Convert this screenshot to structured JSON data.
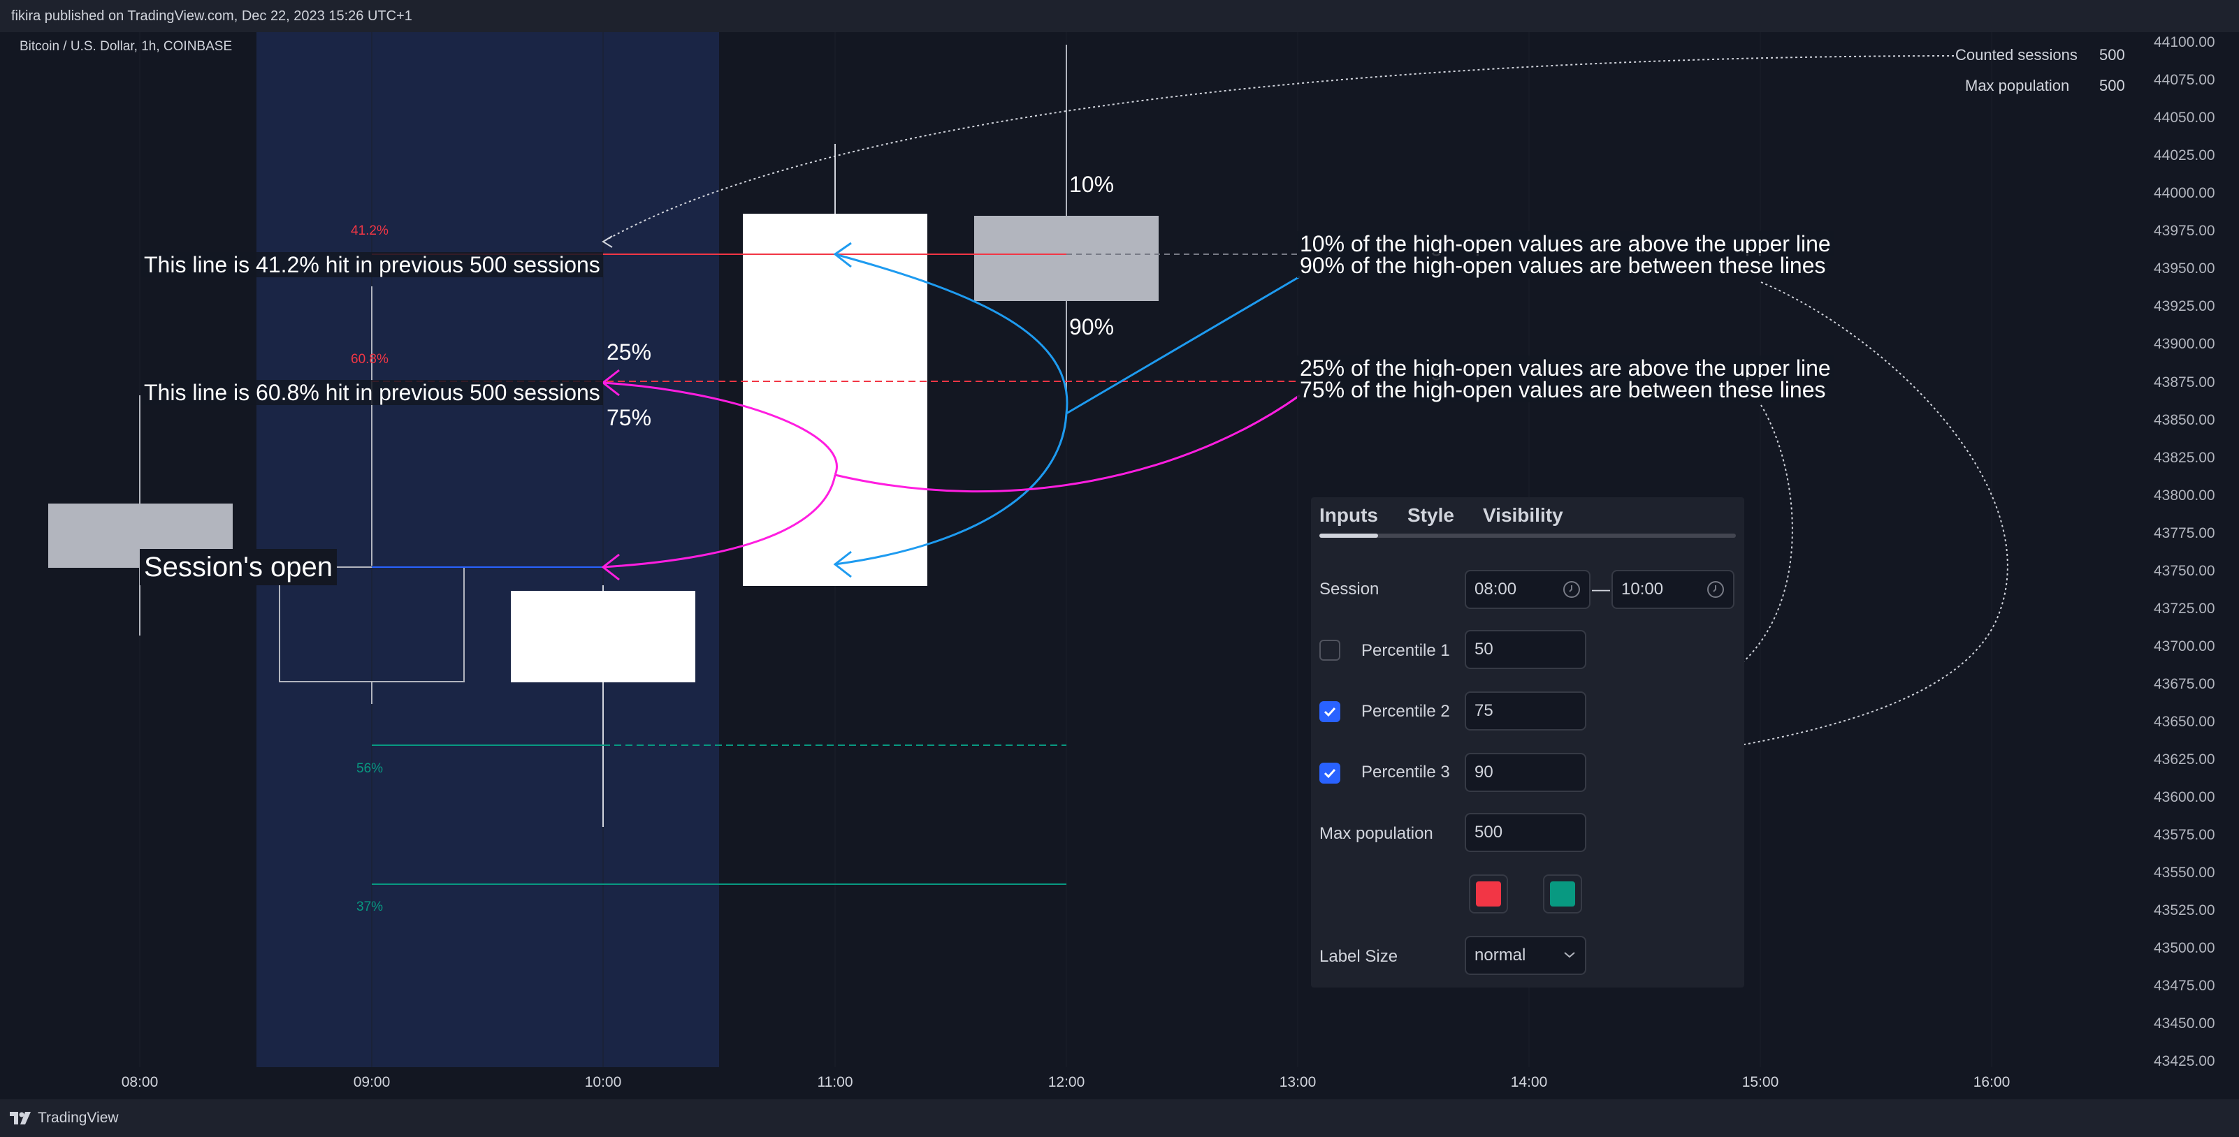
{
  "publisher_line": "fikira published on TradingView.com, Dec 22, 2023 15:26 UTC+1",
  "symbol": "Bitcoin / U.S. Dollar, 1h, COINBASE",
  "footer_brand": "TradingView",
  "info": {
    "counted_sessions_label": "Counted sessions",
    "counted_sessions_value": "500",
    "max_population_label": "Max population",
    "max_population_value": "500"
  },
  "y_axis": [
    "44100.00",
    "44075.00",
    "44050.00",
    "44025.00",
    "44000.00",
    "43975.00",
    "43950.00",
    "43925.00",
    "43900.00",
    "43875.00",
    "43850.00",
    "43825.00",
    "43800.00",
    "43775.00",
    "43750.00",
    "43725.00",
    "43700.00",
    "43675.00",
    "43650.00",
    "43625.00",
    "43600.00",
    "43575.00",
    "43550.00",
    "43525.00",
    "43500.00",
    "43475.00",
    "43450.00",
    "43425.00"
  ],
  "x_axis": [
    "08:00",
    "09:00",
    "10:00",
    "11:00",
    "12:00",
    "13:00",
    "14:00",
    "15:00",
    "16:00"
  ],
  "levels": {
    "upper_label": "41.2%",
    "upper_mid_label": "60.8%",
    "lower_mid_label": "56%",
    "lower_label": "37%"
  },
  "annotations": {
    "line1": "This line is 41.2% hit in previous 500 sessions",
    "line2": "This line is 60.8% hit in previous 500 sessions",
    "session_open": "Session's open",
    "pct25": "25%",
    "pct75": "75%",
    "pct10": "10%",
    "pct90": "90%",
    "desc10a": "10% of the high-open values are above the upper line",
    "desc10b": "90% of the high-open values are between these lines",
    "desc25a": "25% of the high-open values are above the upper line",
    "desc25b": "75% of the high-open values are between these lines"
  },
  "panel": {
    "tabs": [
      "Inputs",
      "Style",
      "Visibility"
    ],
    "session_label": "Session",
    "session_start": "08:00",
    "session_end": "10:00",
    "session_dash": "—",
    "percentile1_label": "Percentile 1",
    "percentile1_value": "50",
    "percentile1_checked": false,
    "percentile2_label": "Percentile 2",
    "percentile2_value": "75",
    "percentile2_checked": true,
    "percentile3_label": "Percentile 3",
    "percentile3_value": "90",
    "percentile3_checked": true,
    "max_population_label": "Max population",
    "max_population_value": "500",
    "color_up": "#f23645",
    "color_down": "#089981",
    "label_size_label": "Label Size",
    "label_size_value": "normal"
  },
  "colors": {
    "red_level": "#f23645",
    "teal_level": "#089981",
    "session_bg": "#1a2545",
    "blue_arrow": "#1e9bf0",
    "magenta_arrow": "#ff1ee0",
    "open_line": "#2962ff"
  }
}
